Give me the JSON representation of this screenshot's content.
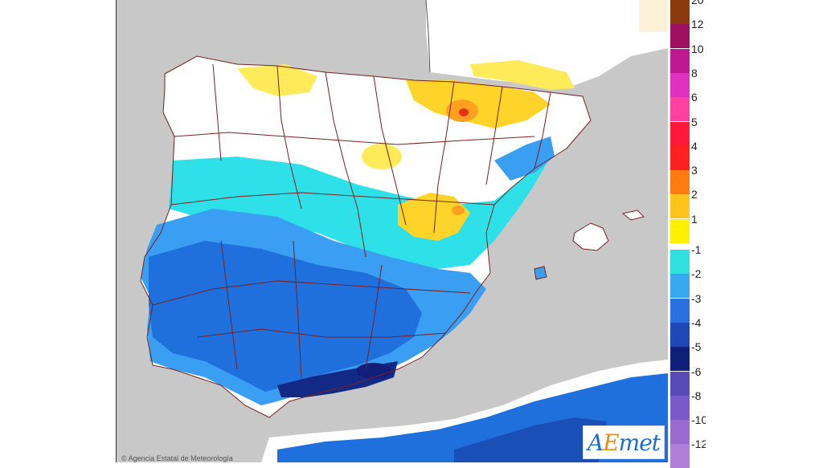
{
  "colors": {
    "sea": "#c8c8c8",
    "land_white": "#ffffff",
    "cyan": "#2ee0e8",
    "light_blue": "#3a9ef2",
    "mid_blue": "#1f6fdc",
    "blue": "#1b4fb8",
    "navy": "#122a86",
    "yellow_light": "#ffeb5a",
    "yellow": "#ffd42a",
    "orange": "#ffa020",
    "red": "#e8301a",
    "border": "#7a1f1f"
  },
  "legend": {
    "items": [
      {
        "label": "20",
        "color": "#8b3a0e"
      },
      {
        "label": "12",
        "color": "#a01060"
      },
      {
        "label": "10",
        "color": "#c01890"
      },
      {
        "label": "8",
        "color": "#e030c0"
      },
      {
        "label": "6",
        "color": "#ff40a0"
      },
      {
        "label": "5",
        "color": "#ff1838"
      },
      {
        "label": "4",
        "color": "#ff2020"
      },
      {
        "label": "3",
        "color": "#ff7a10"
      },
      {
        "label": "2",
        "color": "#ffc41a"
      },
      {
        "label": "1",
        "color": "#fff000"
      },
      {
        "label": "-1",
        "color": "#30e0e0"
      },
      {
        "label": "-2",
        "color": "#38a8f0"
      },
      {
        "label": "-3",
        "color": "#2a70e0"
      },
      {
        "label": "-4",
        "color": "#1c48b8"
      },
      {
        "label": "-5",
        "color": "#10207a"
      },
      {
        "label": "-6",
        "color": "#5a4ab8"
      },
      {
        "label": "-8",
        "color": "#7a5ac8"
      },
      {
        "label": "-10",
        "color": "#9a6ad0"
      },
      {
        "label": "-12",
        "color": "#b080d8"
      }
    ]
  },
  "logo": {
    "text_a": "A",
    "text_e": "E",
    "text_rest": "met"
  },
  "attribution": "© Agencia Estatal de Meteorología"
}
